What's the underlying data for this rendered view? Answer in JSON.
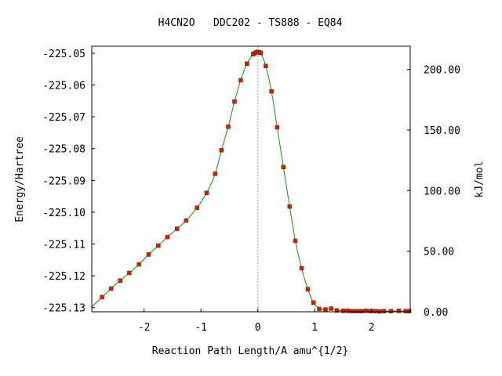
{
  "chart_data": {
    "type": "line",
    "title": "H4CN2O   DDC202 - TS888 - EQ84",
    "xlabel": "Reaction Path Length/A amu^{1/2}",
    "ylabel": "Energy/Hartree",
    "y2label": "kJ/mol",
    "xlim": [
      -2.92,
      2.68
    ],
    "ylim": [
      -225.1313,
      -225.0478
    ],
    "y2lim": [
      0.0,
      219.2
    ],
    "x_ticks": [
      -2,
      -1,
      0,
      1,
      2
    ],
    "x_tick_labels": [
      "-2",
      "-1",
      "0",
      "1",
      "2"
    ],
    "y_ticks": [
      -225.05,
      -225.06,
      -225.07,
      -225.08,
      -225.09,
      -225.1,
      -225.11,
      -225.12,
      -225.13
    ],
    "y_tick_labels": [
      "-225.05",
      "-225.06",
      "-225.07",
      "-225.08",
      "-225.09",
      "-225.10",
      "-225.11",
      "-225.12",
      "-225.13"
    ],
    "y2_ticks": [
      200.0,
      150.0,
      100.0,
      50.0,
      0.0
    ],
    "y2_tick_labels": [
      "200.00",
      "150.00",
      "100.00",
      "50.00",
      "0.00"
    ],
    "grid": false,
    "ts_marker_x": 0.0,
    "colors": {
      "curve": "#00a000",
      "points": "#cc2200",
      "ts_line": "#a0a0a0"
    },
    "series": [
      {
        "x": [
          -2.74,
          -2.58,
          -2.42,
          -2.26,
          -2.09,
          -1.92,
          -1.75,
          -1.59,
          -1.42,
          -1.26,
          -1.07,
          -0.9,
          -0.75,
          -0.64,
          -0.52,
          -0.41,
          -0.3,
          -0.19,
          -0.08,
          -0.05,
          -0.02,
          0.0,
          0.02,
          0.05,
          0.14,
          0.24,
          0.34,
          0.45,
          0.56,
          0.66,
          0.77,
          0.88,
          0.98,
          1.08,
          1.19,
          1.29,
          1.39,
          1.5,
          1.58,
          1.66,
          1.74,
          1.82,
          1.9,
          1.98,
          2.06,
          2.14,
          2.22,
          2.34,
          2.48,
          2.6,
          2.66
        ],
        "y": [
          -225.1267,
          -225.124,
          -225.1215,
          -225.1191,
          -225.1164,
          -225.1133,
          -225.1105,
          -225.1078,
          -225.1052,
          -225.1026,
          -225.0986,
          -225.0939,
          -225.0879,
          -225.0805,
          -225.0731,
          -225.0652,
          -225.0585,
          -225.0533,
          -225.0503,
          -225.0499,
          -225.0497,
          -225.0496,
          -225.0497,
          -225.0499,
          -225.054,
          -225.062,
          -225.0733,
          -225.0858,
          -225.0982,
          -225.109,
          -225.1176,
          -225.1242,
          -225.1284,
          -225.1304,
          -225.1306,
          -225.1303,
          -225.1309,
          -225.131,
          -225.131,
          -225.1311,
          -225.1311,
          -225.1311,
          -225.131,
          -225.1311,
          -225.1311,
          -225.1312,
          -225.1311,
          -225.1311,
          -225.131,
          -225.1311,
          -225.1311
        ]
      }
    ]
  }
}
